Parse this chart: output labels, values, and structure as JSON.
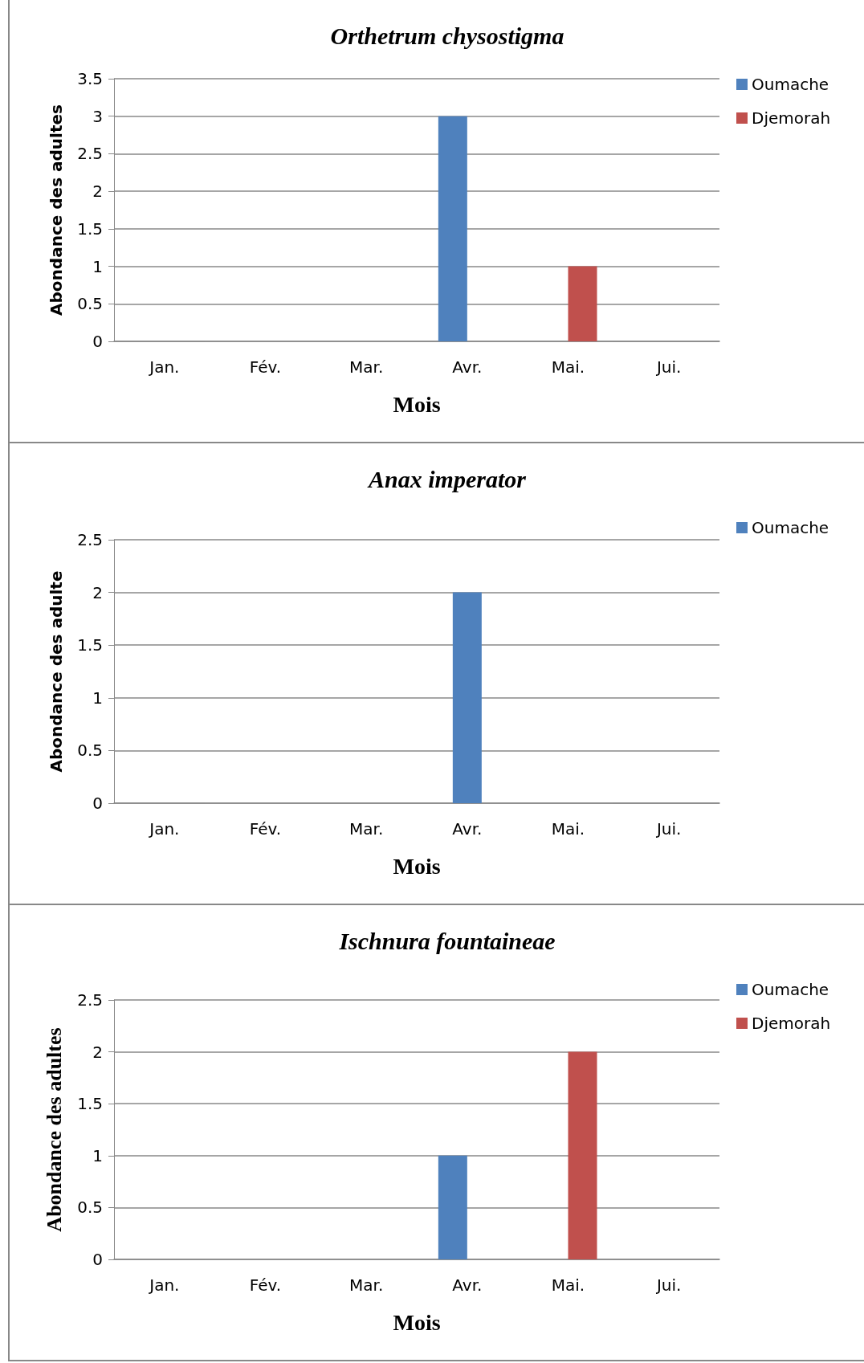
{
  "chart_data": [
    {
      "type": "bar",
      "title": "Orthetrum chysostigma",
      "xlabel": "Mois",
      "ylabel": "Abondance des adultes",
      "categories": [
        "Jan.",
        "Fév.",
        "Mar.",
        "Avr.",
        "Mai.",
        "Jui."
      ],
      "series": [
        {
          "name": "Oumache",
          "color": "#4f81bd",
          "values": [
            0,
            0,
            0,
            3,
            0,
            0
          ]
        },
        {
          "name": "Djemorah",
          "color": "#c0504d",
          "values": [
            0,
            0,
            0,
            0,
            1,
            0
          ]
        }
      ],
      "ylim": [
        0,
        3.5
      ],
      "yticks": [
        0,
        0.5,
        1,
        1.5,
        2,
        2.5,
        3,
        3.5
      ],
      "grid": "y",
      "legend": "top right"
    },
    {
      "type": "bar",
      "title": "Anax imperator",
      "xlabel": "Mois",
      "ylabel": "Abondance des adulte",
      "categories": [
        "Jan.",
        "Fév.",
        "Mar.",
        "Avr.",
        "Mai.",
        "Jui."
      ],
      "series": [
        {
          "name": "Oumache",
          "color": "#4f81bd",
          "values": [
            0,
            0,
            0,
            2,
            0,
            0
          ]
        }
      ],
      "ylim": [
        0,
        2.5
      ],
      "yticks": [
        0,
        0.5,
        1,
        1.5,
        2,
        2.5
      ],
      "grid": "y",
      "legend": "top right"
    },
    {
      "type": "bar",
      "title": "Ischnura fountaineae",
      "xlabel": "Mois",
      "ylabel": "Abondance des adultes",
      "categories": [
        "Jan.",
        "Fév.",
        "Mar.",
        "Avr.",
        "Mai.",
        "Jui."
      ],
      "series": [
        {
          "name": "Oumache",
          "color": "#4f81bd",
          "values": [
            0,
            0,
            0,
            1,
            0,
            0
          ]
        },
        {
          "name": "Djemorah",
          "color": "#c0504d",
          "values": [
            0,
            0,
            0,
            0,
            2,
            0
          ]
        }
      ],
      "ylim": [
        0,
        2.5
      ],
      "yticks": [
        0,
        0.5,
        1,
        1.5,
        2,
        2.5
      ],
      "grid": "y",
      "legend": "top right"
    }
  ]
}
